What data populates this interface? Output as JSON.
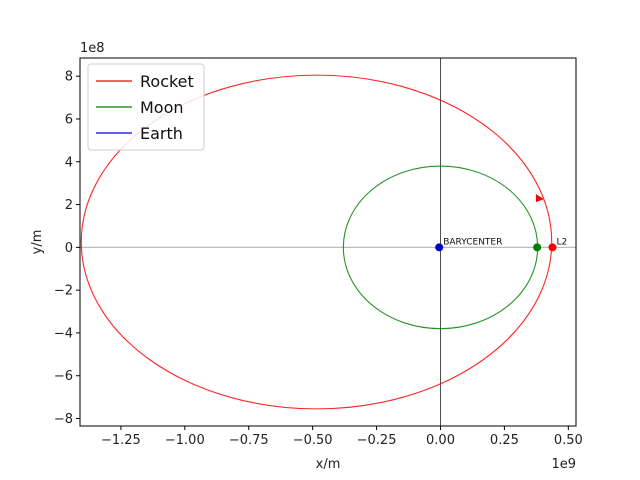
{
  "chart_data": {
    "type": "line",
    "xlabel": "x/m",
    "ylabel": "y/m",
    "x_offset_text": "1e9",
    "y_offset_text": "1e8",
    "xlim": [
      -1410000000.0,
      530000000.0
    ],
    "ylim": [
      -835000000.0,
      885000000.0
    ],
    "x_ticks": [
      -1250000000.0,
      -1000000000.0,
      -750000000.0,
      -500000000.0,
      -250000000.0,
      0,
      250000000.0,
      500000000.0
    ],
    "x_tick_labels": [
      "−1.25",
      "−1.00",
      "−0.75",
      "−0.50",
      "−0.25",
      "0.00",
      "0.25",
      "0.50"
    ],
    "y_ticks": [
      -800000000.0,
      -600000000.0,
      -400000000.0,
      -200000000.0,
      0,
      200000000.0,
      400000000.0,
      600000000.0,
      800000000.0
    ],
    "y_tick_labels": [
      "−8",
      "−6",
      "−4",
      "−2",
      "0",
      "2",
      "4",
      "6",
      "8"
    ],
    "legend": {
      "placement": "upper-left"
    },
    "series": [
      {
        "name": "Rocket",
        "color": "#ff0000",
        "ellipse": {
          "cx": -485000000.0,
          "cy": 25000000.0,
          "rx": 920000000.0,
          "ry": 780000000.0
        },
        "arrow_at": [
          385000000.0,
          230000000.0
        ]
      },
      {
        "name": "Moon",
        "color": "#008000",
        "ellipse": {
          "cx": 0,
          "cy": 0,
          "rx": 380000000.0,
          "ry": 380000000.0
        }
      },
      {
        "name": "Earth",
        "color": "#0000ff"
      }
    ],
    "points": [
      {
        "label": "BARYCENTER",
        "x": -5000000.0,
        "y": 0,
        "color": "#0000cc"
      },
      {
        "label": "",
        "x": 378000000.0,
        "y": 0,
        "color": "#008000"
      },
      {
        "label": "L2",
        "x": 438000000.0,
        "y": 0,
        "color": "#ff0000"
      }
    ]
  }
}
